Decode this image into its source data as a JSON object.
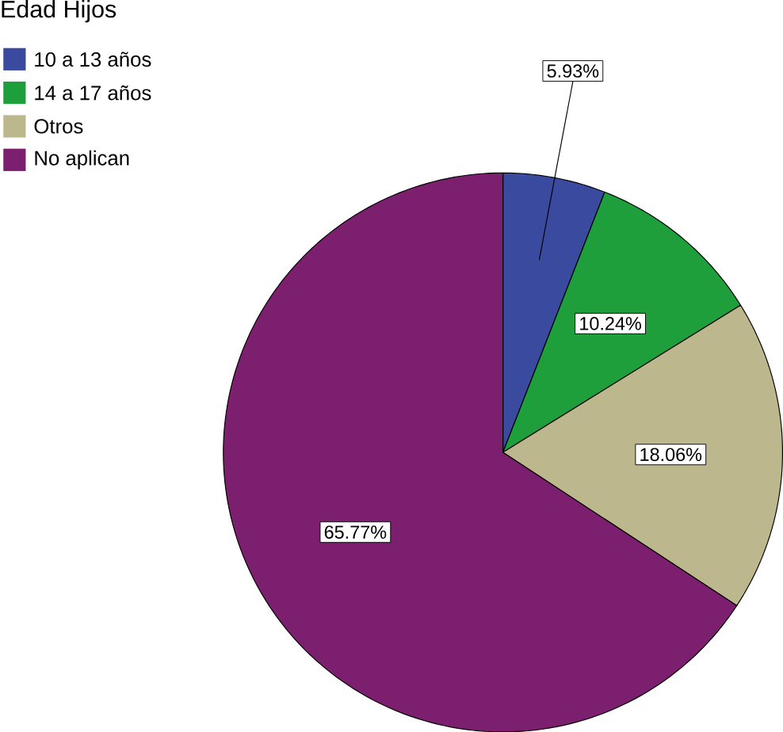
{
  "chart_data": {
    "type": "pie",
    "legend_title": "Edad Hijos",
    "categories": [
      "10 a 13 años",
      "14 a 17 años",
      "Otros",
      "No aplican"
    ],
    "values": [
      5.93,
      10.24,
      18.06,
      65.77
    ],
    "value_labels": [
      "5.93%",
      "10.24%",
      "18.06%",
      "65.77%"
    ],
    "colors": [
      "#3a4a9e",
      "#1f9e3c",
      "#bcb78c",
      "#7b1f6e"
    ],
    "legend": "top left"
  }
}
